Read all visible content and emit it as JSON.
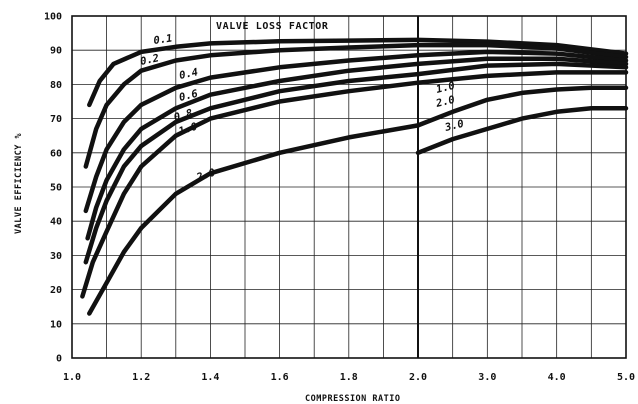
{
  "chart_data": {
    "type": "line",
    "xlabel": "COMPRESSION RATIO",
    "ylabel": "VALVE EFFICIENCY %",
    "ylim": [
      0,
      100
    ],
    "y_ticks": [
      "0",
      "10",
      "20",
      "30",
      "40",
      "50",
      "60",
      "70",
      "80",
      "90",
      "100"
    ],
    "x_ticks": [
      "1.0",
      "1.2",
      "1.4",
      "1.6",
      "1.8",
      "2.0",
      "3.0",
      "4.0",
      "5.0"
    ],
    "x_tick_values": [
      1.0,
      1.2,
      1.4,
      1.6,
      1.8,
      2.0,
      3.0,
      4.0,
      5.0
    ],
    "grid": true,
    "annotation": "VALVE LOSS FACTOR",
    "panels": [
      {
        "xlim": [
          1.0,
          2.0
        ],
        "series": [
          {
            "name": "0.1",
            "x": [
              1.05,
              1.08,
              1.12,
              1.2,
              1.3,
              1.4,
              1.6,
              1.8,
              2.0
            ],
            "y": [
              74,
              81,
              86,
              89.5,
              91,
              92,
              92.6,
              92.8,
              93
            ]
          },
          {
            "name": "0.2",
            "x": [
              1.04,
              1.07,
              1.1,
              1.15,
              1.2,
              1.3,
              1.4,
              1.6,
              1.8,
              2.0
            ],
            "y": [
              56,
              67,
              74,
              80,
              84,
              87,
              88.5,
              90,
              90.8,
              91.5
            ]
          },
          {
            "name": "0.4",
            "x": [
              1.04,
              1.07,
              1.1,
              1.15,
              1.2,
              1.3,
              1.4,
              1.6,
              1.8,
              2.0
            ],
            "y": [
              43,
              53,
              61,
              69,
              74,
              79,
              82,
              85,
              87,
              88.5
            ]
          },
          {
            "name": "0.6",
            "x": [
              1.045,
              1.07,
              1.1,
              1.15,
              1.2,
              1.3,
              1.4,
              1.6,
              1.8,
              2.0
            ],
            "y": [
              35,
              44,
              52,
              61,
              67,
              73,
              77,
              81,
              84,
              86
            ]
          },
          {
            "name": "0.8",
            "x": [
              1.04,
              1.07,
              1.1,
              1.15,
              1.2,
              1.3,
              1.4,
              1.6,
              1.8,
              2.0
            ],
            "y": [
              28,
              38,
              46,
              56,
              62,
              69,
              73,
              78,
              81,
              83
            ]
          },
          {
            "name": "1.0",
            "x": [
              1.03,
              1.06,
              1.1,
              1.15,
              1.2,
              1.3,
              1.4,
              1.6,
              1.8,
              2.0
            ],
            "y": [
              18,
              28,
              37,
              48,
              56,
              65,
              70,
              75,
              78,
              80.5
            ]
          },
          {
            "name": "2.0",
            "x": [
              1.05,
              1.1,
              1.15,
              1.2,
              1.3,
              1.4,
              1.6,
              1.8,
              2.0
            ],
            "y": [
              13,
              22,
              31,
              38,
              48,
              54,
              60,
              64.5,
              68
            ]
          }
        ]
      },
      {
        "xlim": [
          2.0,
          5.0
        ],
        "series": [
          {
            "name": "0.1",
            "x": [
              2.0,
              3.0,
              4.0,
              5.0
            ],
            "y": [
              93,
              92.5,
              91.5,
              89
            ]
          },
          {
            "name": "0.2",
            "x": [
              2.0,
              3.0,
              4.0,
              5.0
            ],
            "y": [
              91.5,
              91.5,
              90.5,
              88
            ]
          },
          {
            "name": "0.4",
            "x": [
              2.0,
              3.0,
              4.0,
              5.0
            ],
            "y": [
              88.5,
              89.5,
              89,
              87
            ]
          },
          {
            "name": "0.6",
            "x": [
              2.0,
              3.0,
              4.0,
              5.0
            ],
            "y": [
              86,
              87.5,
              87.5,
              86
            ]
          },
          {
            "name": "0.8",
            "x": [
              2.0,
              3.0,
              4.0,
              5.0
            ],
            "y": [
              83,
              85.5,
              86,
              85
            ]
          },
          {
            "name": "1.0",
            "x": [
              2.0,
              2.5,
              3.0,
              3.5,
              4.0,
              4.5,
              5.0
            ],
            "y": [
              80.5,
              81.5,
              82.5,
              83,
              83.5,
              83.5,
              83.5
            ]
          },
          {
            "name": "2.0",
            "x": [
              2.0,
              2.5,
              3.0,
              3.5,
              4.0,
              4.5,
              5.0
            ],
            "y": [
              68,
              72,
              75.5,
              77.5,
              78.5,
              79,
              79
            ]
          },
          {
            "name": "3.0",
            "x": [
              2.0,
              2.5,
              3.0,
              3.5,
              4.0,
              4.5,
              5.0
            ],
            "y": [
              60,
              64,
              67,
              70,
              72,
              73,
              73
            ]
          }
        ]
      }
    ]
  }
}
